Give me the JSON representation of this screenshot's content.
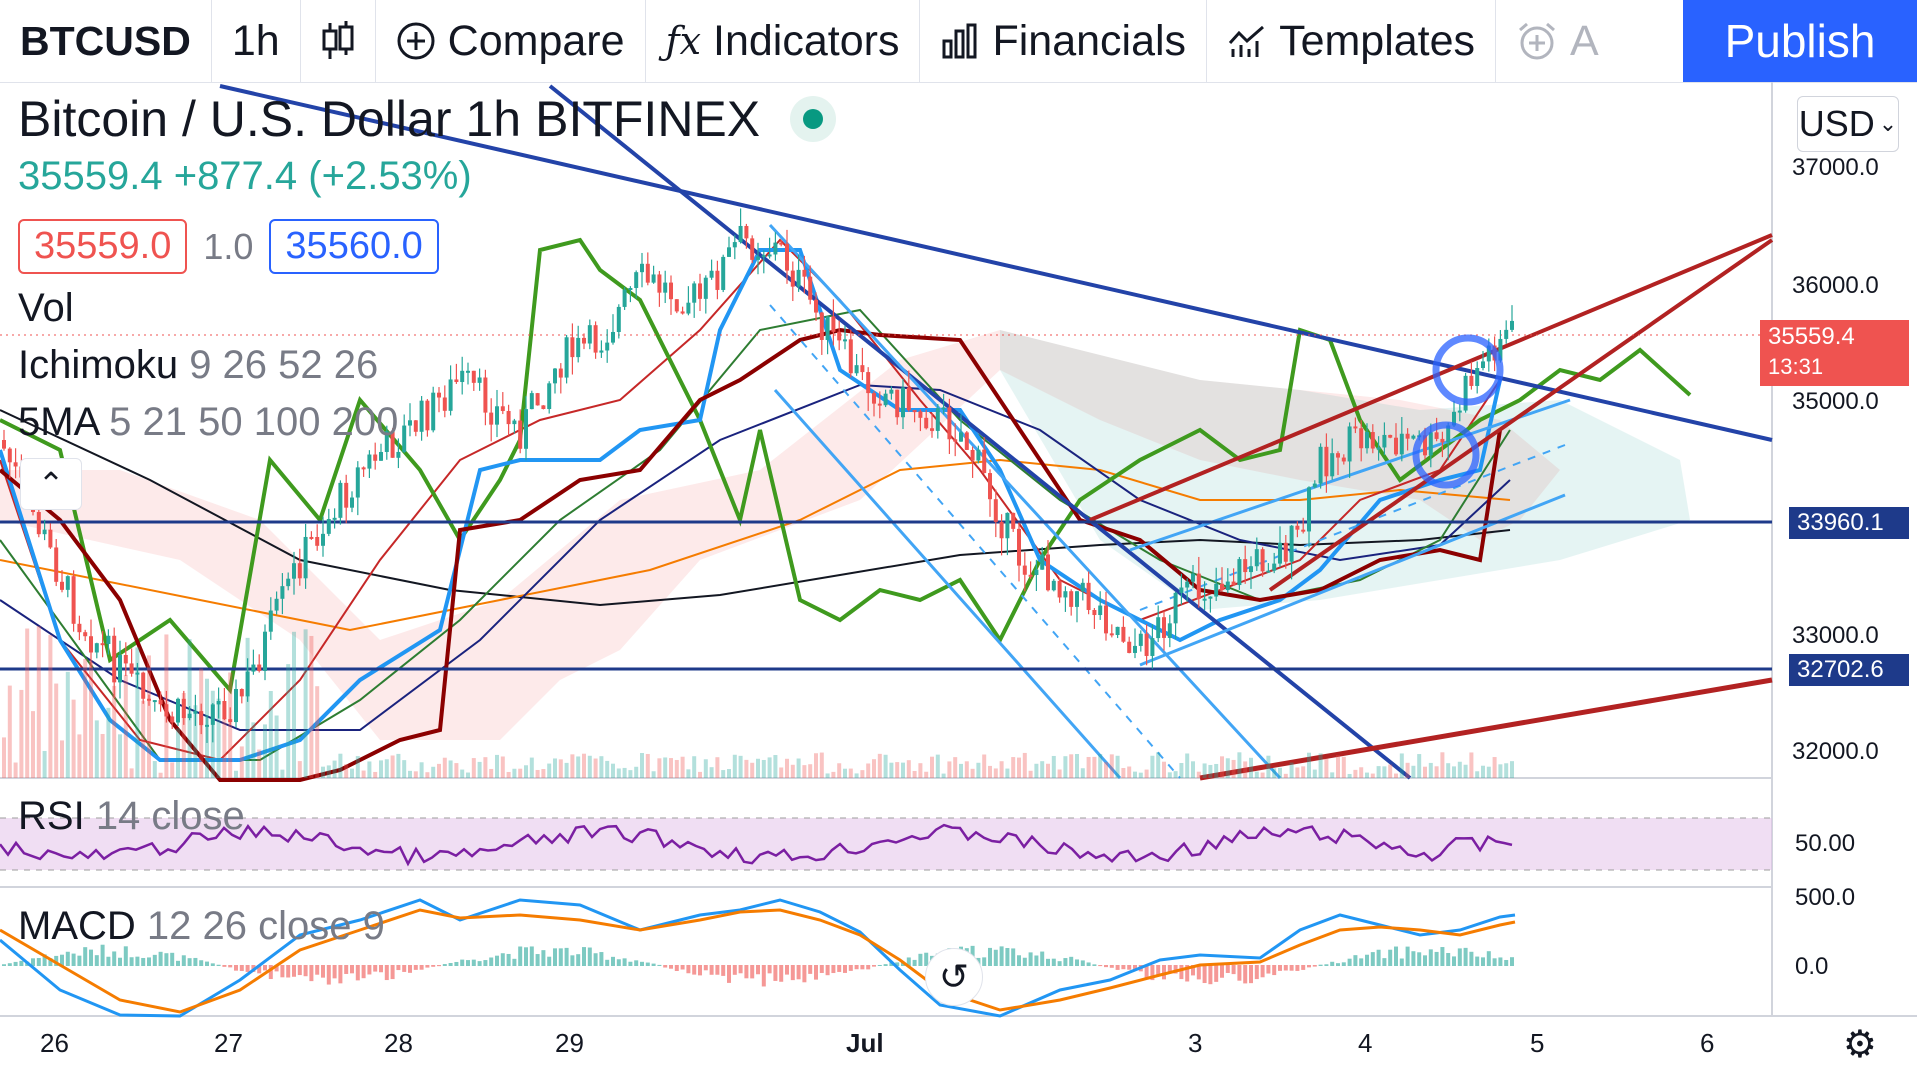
{
  "toolbar": {
    "symbol": "BTCUSD",
    "interval": "1h",
    "chart_type_icon": "candles-icon",
    "compare_label": "Compare",
    "indicators_label": "Indicators",
    "financials_label": "Financials",
    "templates_label": "Templates",
    "alert_label": "A",
    "publish_label": "Publish"
  },
  "legend": {
    "title": "Bitcoin / U.S. Dollar",
    "interval": "1h",
    "exchange": "BITFINEX",
    "change": "35559.4 +877.4 (+2.53%)",
    "sell_price": "35559.0",
    "spread": "1.0",
    "buy_price": "35560.0",
    "vol": "Vol",
    "ichimoku_name": "Ichimoku",
    "ichimoku_params": "9 26 52 26",
    "sma_name": "5MA",
    "sma_params": "5 21 50 100 200"
  },
  "price_axis": {
    "currency": "USD",
    "ticks": [
      "37000.0",
      "36000.0",
      "35000.0",
      "33000.0",
      "32000.0"
    ],
    "current_price": "35559.4",
    "countdown": "13:31",
    "level_1": "33960.1",
    "level_2": "32702.6"
  },
  "rsi": {
    "name": "RSI",
    "params": "14 close",
    "tick": "50.00"
  },
  "macd": {
    "name": "MACD",
    "params": "12 26 close 9",
    "tick_top": "500.0",
    "tick_zero": "0.0"
  },
  "time_axis": [
    "26",
    "27",
    "28",
    "29",
    "Jul",
    "3",
    "4",
    "5",
    "6"
  ],
  "colors": {
    "up": "#26a69a",
    "down": "#ef5350",
    "trendline_blue": "#2343a8",
    "trendline_red": "#b22222",
    "ichimoku_lag": "#3f9a1e",
    "rsi_line": "#7b1fa2",
    "accent": "#2962ff"
  }
}
